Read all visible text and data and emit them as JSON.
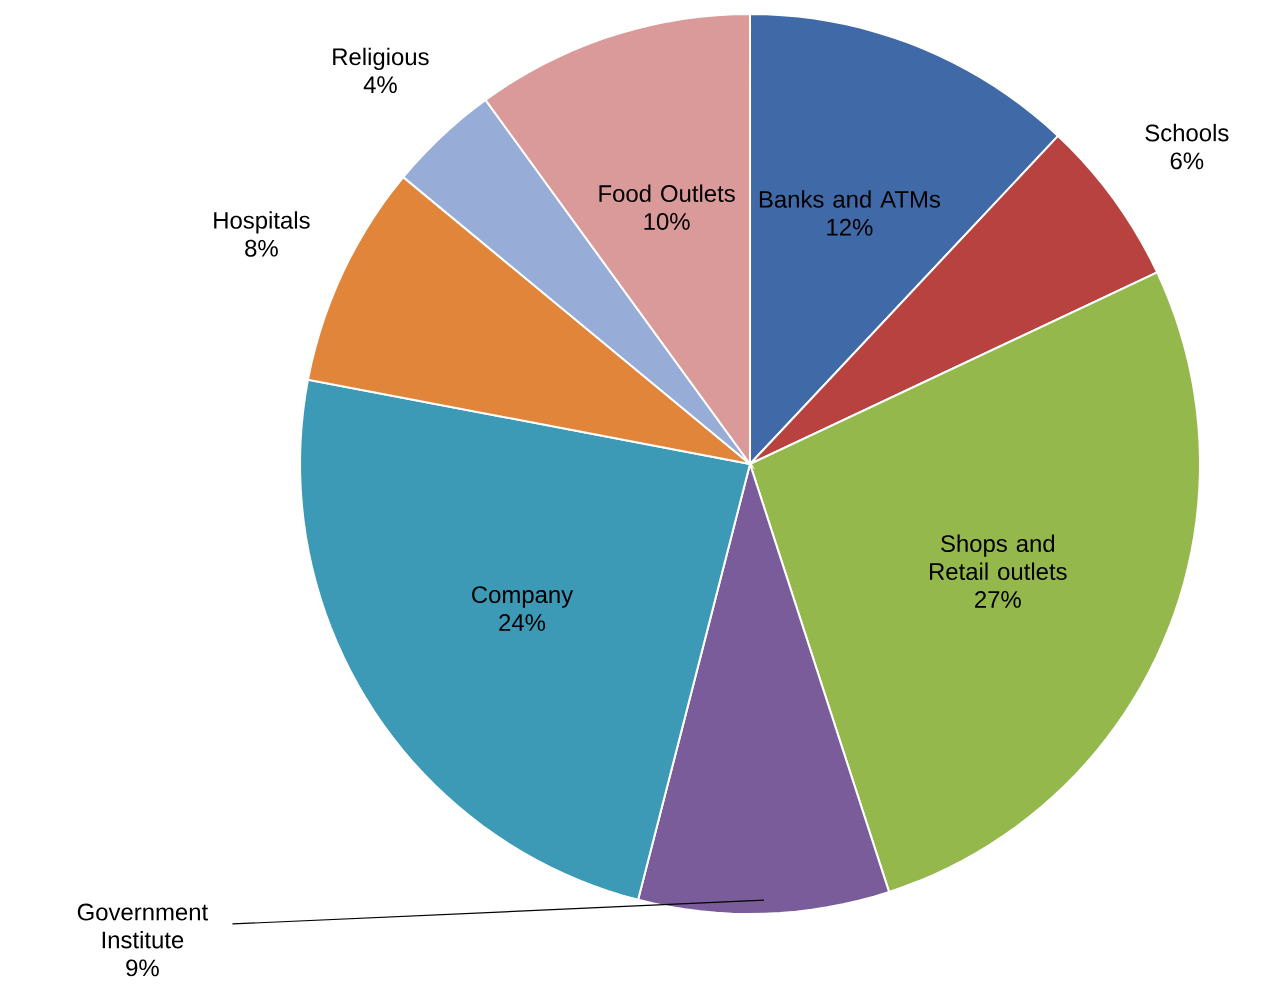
{
  "chart_data": {
    "type": "pie",
    "categories": [
      "Banks and ATMs",
      "Schools",
      "Shops and Retail outlets",
      "Government Institute",
      "Company",
      "Hospitals",
      "Religious",
      "Food Outlets"
    ],
    "values": [
      12,
      6,
      27,
      9,
      24,
      8,
      4,
      10
    ],
    "value_labels": [
      "12%",
      "6%",
      "27%",
      "9%",
      "24%",
      "8%",
      "4%",
      "10%"
    ],
    "colors": [
      "#4069a8",
      "#b8423f",
      "#94b84b",
      "#7a5c9b",
      "#3d9ab6",
      "#e0853a",
      "#97acd6",
      "#d99a99"
    ]
  }
}
